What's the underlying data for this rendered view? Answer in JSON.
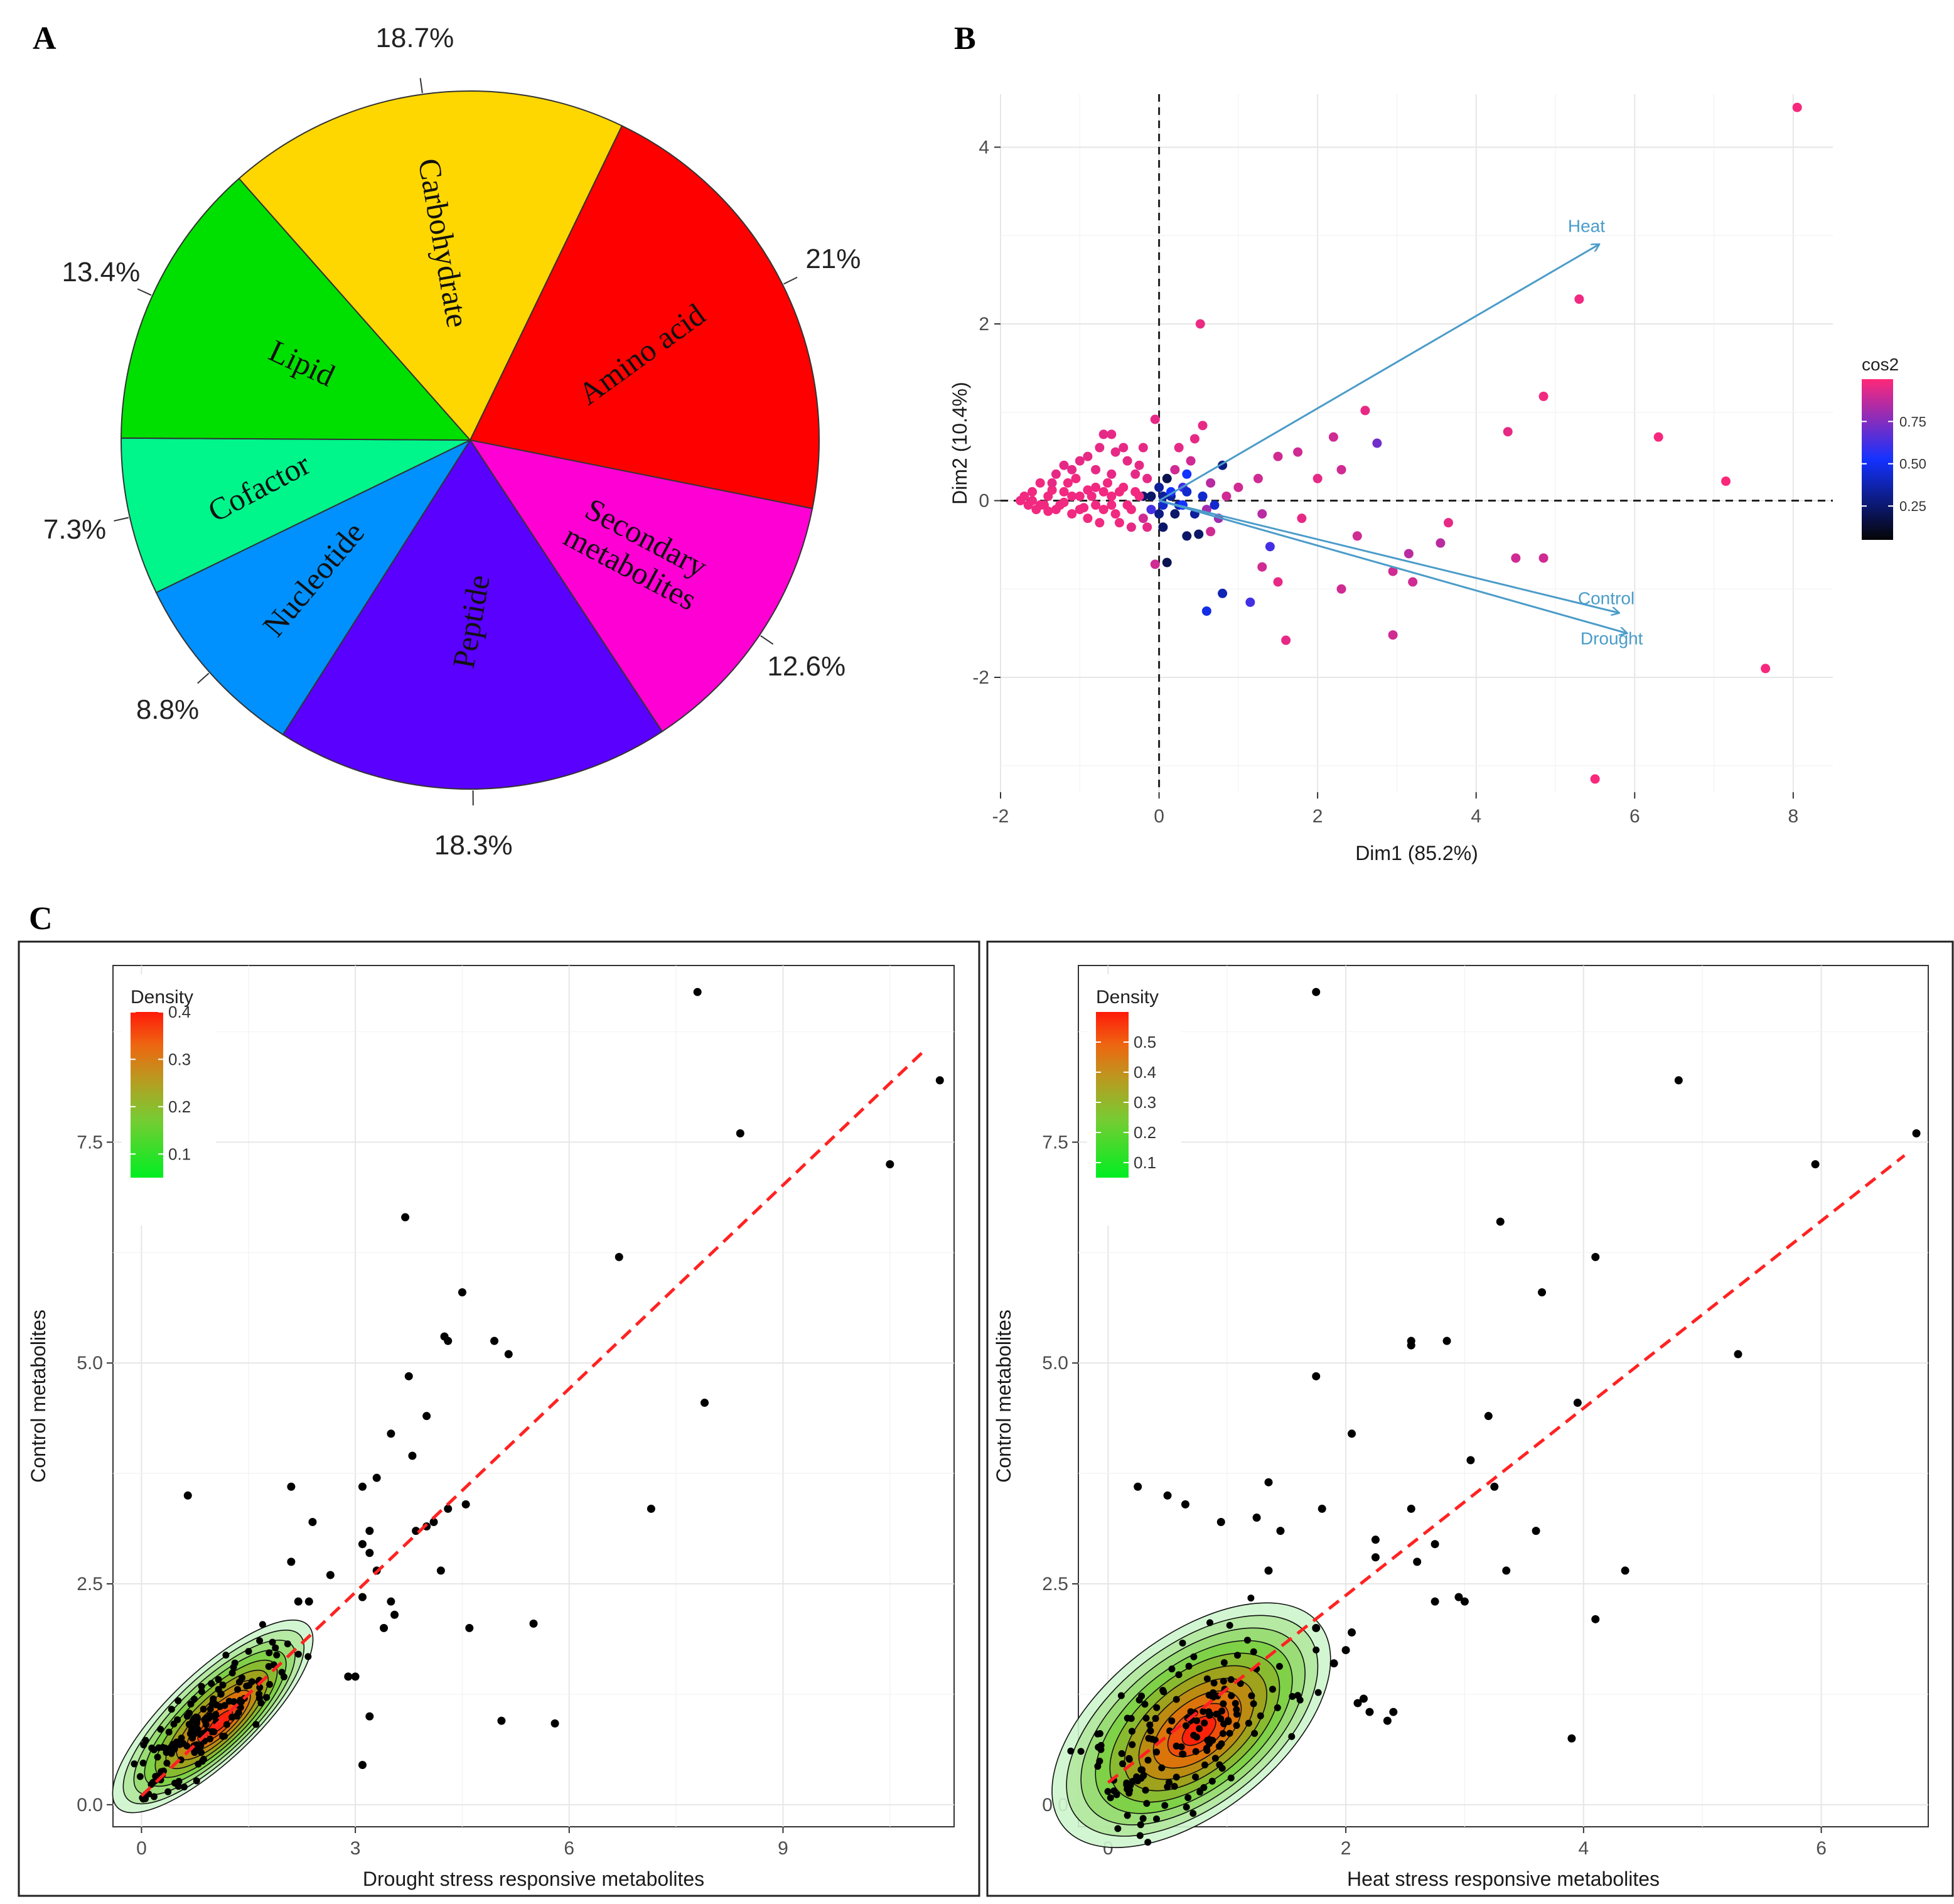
{
  "panels": {
    "a": "A",
    "b": "B",
    "c": "C"
  },
  "colors": {
    "amino_acid": "#ff0000",
    "carbohydrate": "#ffd700",
    "lipid": "#00e000",
    "cofactor": "#00f58a",
    "nucleotide": "#0091ff",
    "peptide": "#5a00ff",
    "secondary": "#ff00d4",
    "arrow": "#4b9cc9",
    "fitline": "#ff2222"
  },
  "chart_data": [
    {
      "id": "pie",
      "type": "pie",
      "title": "",
      "slices": [
        {
          "label": "Amino acid",
          "value": 21.0,
          "pct_label": "21%",
          "color": "#ff0000"
        },
        {
          "label": "Secondary metabolites",
          "value": 12.6,
          "pct_label": "12.6%",
          "color": "#ff00d4"
        },
        {
          "label": "Peptide",
          "value": 18.3,
          "pct_label": "18.3%",
          "color": "#5a00ff"
        },
        {
          "label": "Nucleotide",
          "value": 8.8,
          "pct_label": "8.8%",
          "color": "#0091ff"
        },
        {
          "label": "Cofactor",
          "value": 7.3,
          "pct_label": "7.3%",
          "color": "#00f58a"
        },
        {
          "label": "Lipid",
          "value": 13.4,
          "pct_label": "13.4%",
          "color": "#00e000"
        },
        {
          "label": "Carbohydrate",
          "value": 18.7,
          "pct_label": "18.7%",
          "color": "#ffd700"
        }
      ]
    },
    {
      "id": "pca",
      "type": "scatter",
      "xlabel": "Dim1 (85.2%)",
      "ylabel": "Dim2 (10.4%)",
      "xlim": [
        -2,
        8.5
      ],
      "ylim": [
        -3.3,
        4.6
      ],
      "xticks": [
        -2,
        0,
        2,
        4,
        6,
        8
      ],
      "yticks": [
        -2,
        0,
        2,
        4
      ],
      "legend": {
        "title": "cos2",
        "position": "right",
        "ticks": [
          0.25,
          0.5,
          0.75
        ],
        "range": [
          0.05,
          1.0
        ]
      },
      "arrows": [
        {
          "label": "Heat",
          "x": 5.55,
          "y": 2.9
        },
        {
          "label": "Control",
          "x": 5.8,
          "y": -1.27
        },
        {
          "label": "Drought",
          "x": 5.9,
          "y": -1.5
        }
      ],
      "points": [
        [
          8.05,
          4.45,
          0.98
        ],
        [
          5.3,
          2.28,
          0.97
        ],
        [
          0.52,
          2.0,
          0.96
        ],
        [
          4.85,
          1.18,
          0.97
        ],
        [
          6.3,
          0.72,
          0.98
        ],
        [
          7.15,
          0.22,
          0.99
        ],
        [
          7.65,
          -1.9,
          0.98
        ],
        [
          5.5,
          -3.15,
          0.99
        ],
        [
          2.6,
          1.02,
          0.95
        ],
        [
          2.95,
          -1.52,
          0.9
        ],
        [
          1.15,
          -1.15,
          0.6
        ],
        [
          0.8,
          -1.05,
          0.35
        ],
        [
          0.6,
          -1.25,
          0.45
        ],
        [
          1.6,
          -1.58,
          0.95
        ],
        [
          4.5,
          -0.65,
          0.9
        ],
        [
          4.85,
          -0.65,
          0.9
        ],
        [
          3.65,
          -0.25,
          0.95
        ],
        [
          3.55,
          -0.48,
          0.85
        ],
        [
          4.4,
          0.78,
          0.95
        ],
        [
          3.15,
          -0.6,
          0.85
        ],
        [
          3.2,
          -0.92,
          0.9
        ],
        [
          2.95,
          -0.8,
          0.9
        ],
        [
          2.3,
          -1.0,
          0.9
        ],
        [
          2.75,
          0.65,
          0.7
        ],
        [
          2.2,
          0.72,
          0.9
        ],
        [
          1.5,
          0.5,
          0.9
        ],
        [
          1.75,
          0.55,
          0.9
        ],
        [
          2.0,
          0.25,
          0.95
        ],
        [
          2.3,
          0.35,
          0.9
        ],
        [
          1.25,
          0.25,
          0.9
        ],
        [
          1.0,
          0.15,
          0.9
        ],
        [
          1.3,
          -0.15,
          0.85
        ],
        [
          1.4,
          -0.52,
          0.6
        ],
        [
          1.3,
          -0.75,
          0.9
        ],
        [
          1.5,
          -0.92,
          0.95
        ],
        [
          1.8,
          -0.2,
          0.95
        ],
        [
          2.5,
          -0.4,
          0.9
        ],
        [
          0.4,
          0.45,
          0.9
        ],
        [
          0.55,
          0.85,
          0.95
        ],
        [
          0.45,
          0.7,
          0.95
        ],
        [
          0.85,
          0.05,
          0.9
        ],
        [
          0.8,
          0.4,
          0.25
        ],
        [
          0.35,
          0.3,
          0.5
        ],
        [
          0.1,
          0.25,
          0.15
        ],
        [
          0.05,
          -0.3,
          0.2
        ],
        [
          0.1,
          -0.7,
          0.15
        ],
        [
          -0.05,
          -0.72,
          0.9
        ],
        [
          0.35,
          -0.4,
          0.2
        ],
        [
          0.5,
          -0.38,
          0.2
        ],
        [
          0.15,
          0.05,
          0.3
        ],
        [
          0.2,
          -0.15,
          0.2
        ],
        [
          0.25,
          -0.05,
          0.35
        ],
        [
          0.05,
          0.05,
          0.3
        ],
        [
          -0.1,
          0.05,
          0.2
        ],
        [
          0.0,
          -0.15,
          0.25
        ],
        [
          -0.2,
          0.05,
          0.2
        ],
        [
          0.45,
          -0.15,
          0.3
        ],
        [
          0.55,
          0.05,
          0.4
        ],
        [
          0.0,
          0.15,
          0.3
        ],
        [
          0.7,
          -0.05,
          0.4
        ],
        [
          0.65,
          -0.35,
          0.9
        ],
        [
          0.3,
          0.15,
          0.6
        ],
        [
          0.15,
          0.1,
          0.5
        ],
        [
          -0.05,
          0.92,
          0.95
        ],
        [
          -0.6,
          0.75,
          0.95
        ],
        [
          -0.7,
          0.75,
          0.95
        ],
        [
          -0.55,
          0.55,
          0.95
        ],
        [
          -0.4,
          0.45,
          0.95
        ],
        [
          -0.2,
          0.6,
          0.95
        ],
        [
          -0.9,
          0.5,
          0.95
        ],
        [
          -1.0,
          0.45,
          0.95
        ],
        [
          -1.1,
          0.35,
          0.95
        ],
        [
          -0.8,
          0.35,
          0.95
        ],
        [
          -0.6,
          0.3,
          0.95
        ],
        [
          -0.3,
          0.3,
          0.95
        ],
        [
          -0.15,
          0.25,
          0.95
        ],
        [
          -1.3,
          0.3,
          0.95
        ],
        [
          -1.5,
          0.2,
          0.97
        ],
        [
          -1.6,
          0.1,
          0.97
        ],
        [
          -1.7,
          0.05,
          0.97
        ],
        [
          -1.75,
          0.0,
          0.97
        ],
        [
          -1.65,
          -0.05,
          0.97
        ],
        [
          -1.55,
          -0.1,
          0.97
        ],
        [
          -1.4,
          0.05,
          0.97
        ],
        [
          -1.3,
          -0.1,
          0.97
        ],
        [
          -1.2,
          0.1,
          0.97
        ],
        [
          -1.1,
          -0.15,
          0.97
        ],
        [
          -1.0,
          0.05,
          0.97
        ],
        [
          -0.9,
          -0.2,
          0.97
        ],
        [
          -0.8,
          0.15,
          0.97
        ],
        [
          -0.7,
          -0.1,
          0.97
        ],
        [
          -0.6,
          0.05,
          0.97
        ],
        [
          -0.5,
          -0.25,
          0.97
        ],
        [
          -0.45,
          0.15,
          0.97
        ],
        [
          -0.35,
          -0.1,
          0.97
        ],
        [
          -0.25,
          0.05,
          0.97
        ],
        [
          -1.45,
          -0.05,
          0.97
        ],
        [
          -1.35,
          0.12,
          0.97
        ],
        [
          -1.25,
          -0.05,
          0.97
        ],
        [
          -1.15,
          0.2,
          0.97
        ],
        [
          -1.05,
          0.25,
          0.97
        ],
        [
          -0.95,
          -0.08,
          0.97
        ],
        [
          -0.85,
          0.05,
          0.97
        ],
        [
          -0.75,
          -0.25,
          0.97
        ],
        [
          -0.65,
          0.2,
          0.97
        ],
        [
          -0.55,
          -0.15,
          0.97
        ],
        [
          -0.4,
          -0.05,
          0.97
        ],
        [
          -0.3,
          0.1,
          0.97
        ],
        [
          -1.6,
          0.0,
          0.97
        ],
        [
          -1.5,
          -0.05,
          0.97
        ],
        [
          -1.4,
          -0.12,
          0.97
        ],
        [
          -1.2,
          -0.02,
          0.97
        ],
        [
          -1.1,
          0.05,
          0.97
        ],
        [
          -1.0,
          -0.1,
          0.97
        ],
        [
          -0.9,
          0.12,
          0.97
        ],
        [
          -0.8,
          -0.05,
          0.97
        ],
        [
          -0.7,
          0.1,
          0.97
        ],
        [
          -0.6,
          -0.05,
          0.97
        ],
        [
          -0.5,
          0.1,
          0.97
        ],
        [
          -0.2,
          -0.2,
          0.9
        ],
        [
          -0.15,
          -0.3,
          0.95
        ],
        [
          -0.35,
          -0.3,
          0.95
        ],
        [
          -0.1,
          -0.1,
          0.6
        ],
        [
          0.05,
          -0.05,
          0.4
        ],
        [
          0.3,
          -0.05,
          0.5
        ],
        [
          0.35,
          0.1,
          0.4
        ],
        [
          0.6,
          -0.1,
          0.8
        ],
        [
          0.75,
          -0.2,
          0.8
        ],
        [
          -0.25,
          0.4,
          0.95
        ],
        [
          -0.45,
          0.6,
          0.95
        ],
        [
          -0.75,
          0.6,
          0.95
        ],
        [
          0.25,
          0.6,
          0.95
        ],
        [
          0.2,
          0.35,
          0.9
        ],
        [
          0.65,
          0.2,
          0.85
        ],
        [
          -1.2,
          0.4,
          0.95
        ],
        [
          -1.35,
          0.2,
          0.95
        ]
      ]
    },
    {
      "id": "drought",
      "type": "scatter",
      "xlabel": "Drought stress responsive metabolites",
      "ylabel": "Control metabolites",
      "xlim": [
        -0.4,
        11.4
      ],
      "ylim": [
        -0.25,
        9.5
      ],
      "xticks": [
        0,
        3,
        6,
        9
      ],
      "yticks": [
        0.0,
        2.5,
        5.0,
        7.5
      ],
      "ytick_labels": [
        "0.0",
        "2.5",
        "5.0",
        "7.5"
      ],
      "legend": {
        "title": "Density",
        "position": "top-left",
        "ticks": [
          0.1,
          0.2,
          0.3,
          0.4
        ],
        "range": [
          0.05,
          0.4
        ]
      },
      "fit_line": [
        [
          0.0,
          0.1
        ],
        [
          11.0,
          8.55
        ]
      ],
      "density_center": [
        1.0,
        1.0
      ],
      "outliers": [
        [
          7.8,
          9.2
        ],
        [
          11.2,
          8.2
        ],
        [
          8.4,
          7.6
        ],
        [
          10.5,
          7.25
        ],
        [
          3.7,
          6.65
        ],
        [
          6.7,
          6.2
        ],
        [
          4.5,
          5.8
        ],
        [
          4.25,
          5.3
        ],
        [
          4.3,
          5.25
        ],
        [
          4.95,
          5.25
        ],
        [
          5.15,
          5.1
        ],
        [
          3.75,
          4.85
        ],
        [
          7.9,
          4.55
        ],
        [
          4.0,
          4.4
        ],
        [
          3.5,
          4.2
        ],
        [
          3.8,
          3.95
        ],
        [
          0.65,
          3.5
        ],
        [
          2.1,
          3.6
        ],
        [
          3.1,
          3.6
        ],
        [
          3.3,
          3.7
        ],
        [
          4.3,
          3.35
        ],
        [
          4.55,
          3.4
        ],
        [
          7.15,
          3.35
        ],
        [
          2.4,
          3.2
        ],
        [
          3.1,
          2.95
        ],
        [
          3.2,
          3.1
        ],
        [
          3.2,
          2.85
        ],
        [
          3.3,
          2.65
        ],
        [
          4.1,
          3.2
        ],
        [
          4.2,
          2.65
        ],
        [
          2.65,
          2.6
        ],
        [
          2.1,
          2.75
        ],
        [
          3.5,
          2.3
        ],
        [
          3.55,
          2.15
        ],
        [
          3.1,
          2.35
        ],
        [
          2.35,
          2.3
        ],
        [
          5.5,
          2.05
        ],
        [
          4.6,
          2.0
        ],
        [
          2.9,
          1.45
        ],
        [
          3.0,
          1.45
        ],
        [
          3.2,
          1.0
        ],
        [
          3.1,
          0.45
        ],
        [
          5.05,
          0.95
        ],
        [
          5.8,
          0.92
        ],
        [
          2.2,
          2.3
        ],
        [
          3.85,
          3.1
        ],
        [
          3.4,
          2.0
        ],
        [
          4.0,
          3.15
        ]
      ]
    },
    {
      "id": "heat",
      "type": "scatter",
      "xlabel": "Heat stress responsive metabolites",
      "ylabel": "Control metabolites",
      "xlim": [
        -0.25,
        6.9
      ],
      "ylim": [
        -0.25,
        9.5
      ],
      "xticks": [
        0,
        2,
        4,
        6
      ],
      "yticks": [
        0.0,
        2.5,
        5.0,
        7.5
      ],
      "ytick_labels": [
        "0.0",
        "2.5",
        "5.0",
        "7.5"
      ],
      "legend": {
        "title": "Density",
        "position": "top-left",
        "ticks": [
          0.1,
          0.2,
          0.3,
          0.4,
          0.5
        ],
        "range": [
          0.05,
          0.6
        ]
      },
      "fit_line": [
        [
          0.0,
          0.25
        ],
        [
          6.7,
          7.35
        ]
      ],
      "density_center": [
        0.7,
        0.9
      ],
      "outliers": [
        [
          1.75,
          9.2
        ],
        [
          4.8,
          8.2
        ],
        [
          6.8,
          7.6
        ],
        [
          5.95,
          7.25
        ],
        [
          3.3,
          6.6
        ],
        [
          4.1,
          6.2
        ],
        [
          3.65,
          5.8
        ],
        [
          2.55,
          5.25
        ],
        [
          2.55,
          5.2
        ],
        [
          2.85,
          5.25
        ],
        [
          5.3,
          5.1
        ],
        [
          1.75,
          4.85
        ],
        [
          3.95,
          4.55
        ],
        [
          3.2,
          4.4
        ],
        [
          2.05,
          4.2
        ],
        [
          3.05,
          3.9
        ],
        [
          0.25,
          3.6
        ],
        [
          0.5,
          3.5
        ],
        [
          0.65,
          3.4
        ],
        [
          3.25,
          3.6
        ],
        [
          1.35,
          3.65
        ],
        [
          1.8,
          3.35
        ],
        [
          1.25,
          3.25
        ],
        [
          0.95,
          3.2
        ],
        [
          1.45,
          3.1
        ],
        [
          3.6,
          3.1
        ],
        [
          2.25,
          3.0
        ],
        [
          2.55,
          3.35
        ],
        [
          2.25,
          2.8
        ],
        [
          2.75,
          2.95
        ],
        [
          4.35,
          2.65
        ],
        [
          3.35,
          2.65
        ],
        [
          1.35,
          2.65
        ],
        [
          2.6,
          2.75
        ],
        [
          2.95,
          2.35
        ],
        [
          2.75,
          2.3
        ],
        [
          3.0,
          2.3
        ],
        [
          4.1,
          2.1
        ],
        [
          1.75,
          2.0
        ],
        [
          2.05,
          1.95
        ],
        [
          1.9,
          1.6
        ],
        [
          2.0,
          1.75
        ],
        [
          2.2,
          1.05
        ],
        [
          2.35,
          0.95
        ],
        [
          3.9,
          0.75
        ],
        [
          2.15,
          1.2
        ],
        [
          2.4,
          1.05
        ],
        [
          2.1,
          1.15
        ]
      ]
    }
  ]
}
